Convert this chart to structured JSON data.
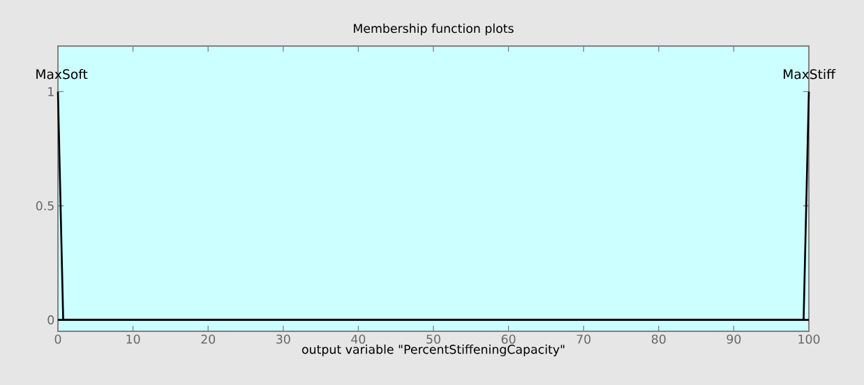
{
  "chart_data": {
    "type": "line",
    "title": "Membership function plots",
    "xlabel": "output variable \"PercentStiffeningCapacity\"",
    "xlim": [
      0,
      100
    ],
    "xticks": [
      0,
      10,
      20,
      30,
      40,
      50,
      60,
      70,
      80,
      90,
      100
    ],
    "ylim": [
      -0.05,
      1.2
    ],
    "yticks": [
      0,
      0.5,
      1
    ],
    "grid": false,
    "legend": false,
    "marker": "none",
    "line_style": "solid",
    "series": [
      {
        "name": "MaxSoft",
        "color": "#000000",
        "x": [
          0,
          0.7,
          100
        ],
        "values": [
          1,
          0,
          0
        ]
      },
      {
        "name": "MaxStiff",
        "color": "#000000",
        "x": [
          0,
          99.3,
          100
        ],
        "values": [
          0,
          0,
          1
        ]
      }
    ]
  }
}
